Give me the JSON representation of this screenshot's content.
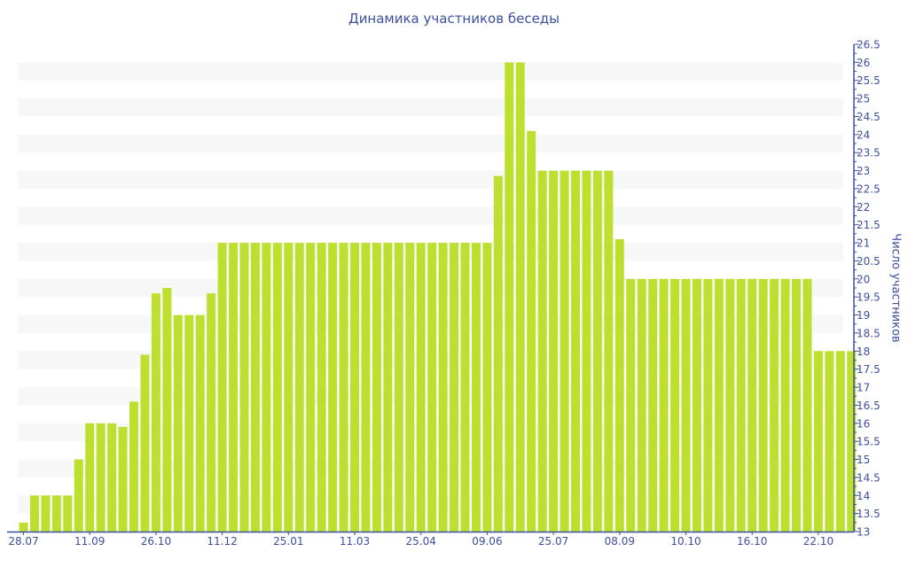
{
  "chart_data": {
    "type": "bar",
    "title": "Динамика участников беседы",
    "xlabel": "",
    "ylabel": "Число участников",
    "ylim": [
      13,
      26.5
    ],
    "y_tick_step": 0.5,
    "y_axis_position": "right",
    "grid": "alternating horizontal bands",
    "bar_color": "#bde030",
    "axis_color": "#3d4f9f",
    "band_color": "#f7f7f7",
    "values": [
      13.25,
      14,
      14,
      14,
      14,
      15,
      16,
      16,
      16,
      15.9,
      16.6,
      17.9,
      19.6,
      19.75,
      19,
      19,
      19,
      19.6,
      21,
      21,
      21,
      21,
      21,
      21,
      21,
      21,
      21,
      21,
      21,
      21,
      21,
      21,
      21,
      21,
      21,
      21,
      21,
      21,
      21,
      21,
      21,
      21,
      21,
      22.85,
      26,
      26,
      24.1,
      23,
      23,
      23,
      23,
      23,
      23,
      23,
      21.1,
      20,
      20,
      20,
      20,
      20,
      20,
      20,
      20,
      20,
      20,
      20,
      20,
      20,
      20,
      20,
      20,
      20,
      18,
      18,
      18,
      18
    ],
    "x_tick_labels": [
      {
        "index": 0,
        "label": "28.07"
      },
      {
        "index": 6,
        "label": "11.09"
      },
      {
        "index": 12,
        "label": "26.10"
      },
      {
        "index": 18,
        "label": "11.12"
      },
      {
        "index": 24,
        "label": "25.01"
      },
      {
        "index": 30,
        "label": "11.03"
      },
      {
        "index": 36,
        "label": "25.04"
      },
      {
        "index": 42,
        "label": "09.06"
      },
      {
        "index": 48,
        "label": "25.07"
      },
      {
        "index": 54,
        "label": "08.09"
      },
      {
        "index": 60,
        "label": "10.10"
      },
      {
        "index": 66,
        "label": "16.10"
      },
      {
        "index": 72,
        "label": "22.10"
      }
    ]
  }
}
